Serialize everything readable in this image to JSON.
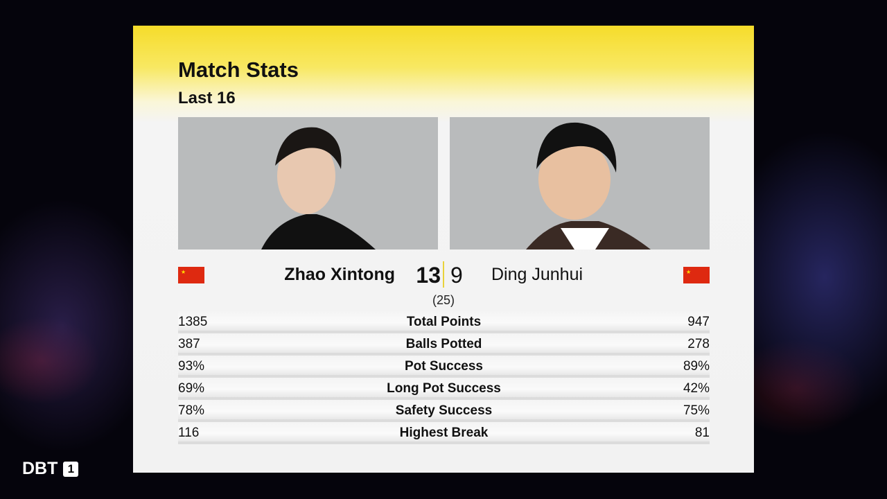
{
  "broadcaster": {
    "name": "DBT",
    "channel": "1"
  },
  "header": {
    "title": "Match Stats",
    "subtitle": "Last 16"
  },
  "players": [
    {
      "name": "Zhao Xintong",
      "score": "13",
      "flag": "China"
    },
    {
      "name": "Ding Junhui",
      "score": "9",
      "flag": "China"
    }
  ],
  "frames": "(25)",
  "colors": {
    "accent": "#f6dc2a",
    "flag": "#de2910"
  },
  "stats": [
    {
      "label": "Total Points",
      "left": "1385",
      "right": "947"
    },
    {
      "label": "Balls Potted",
      "left": "387",
      "right": "278"
    },
    {
      "label": "Pot Success",
      "left": "93%",
      "right": "89%"
    },
    {
      "label": "Long Pot Success",
      "left": "69%",
      "right": "42%"
    },
    {
      "label": "Safety Success",
      "left": "78%",
      "right": "75%"
    },
    {
      "label": "Highest Break",
      "left": "116",
      "right": "81"
    }
  ]
}
